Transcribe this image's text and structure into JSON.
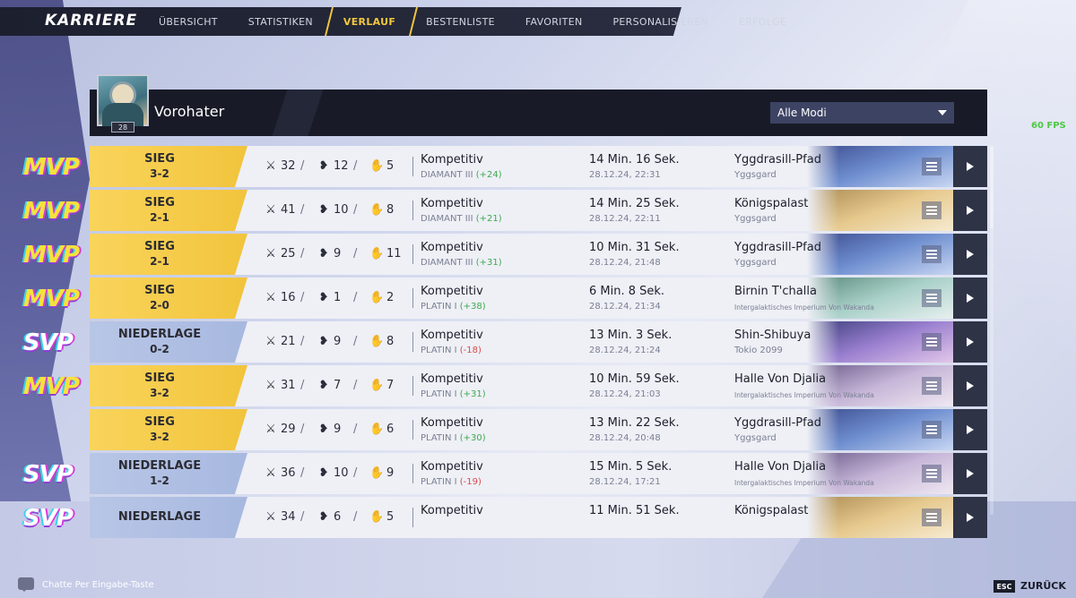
{
  "brand": "KARRIERE",
  "tabs": [
    {
      "label": "ÜBERSICHT",
      "active": false
    },
    {
      "label": "STATISTIKEN",
      "active": false
    },
    {
      "label": "VERLAUF",
      "active": true
    },
    {
      "label": "BESTENLISTE",
      "active": false
    },
    {
      "label": "FAVORITEN",
      "active": false
    },
    {
      "label": "PERSONALISIEREN",
      "active": false
    },
    {
      "label": "ERFOLGE",
      "active": false
    }
  ],
  "player": {
    "name": "Vorohater",
    "level": "28"
  },
  "mode_filter": {
    "selected": "Alle Modi"
  },
  "fps": "60 FPS",
  "matches": [
    {
      "badge": "MVP",
      "result": "SIEG",
      "score": "3-2",
      "win": true,
      "kills": "32",
      "deaths": "12",
      "assists": "5",
      "mode": "Kompetitiv",
      "rank": "DIAMANT III",
      "rank_change": "(+24)",
      "duration": "14 Min. 16 Sek.",
      "date": "28.12.24, 22:31",
      "map": "Yggdrasill-Pfad",
      "region": "Yggsgard",
      "map_theme": "ygg"
    },
    {
      "badge": "MVP",
      "result": "SIEG",
      "score": "2-1",
      "win": true,
      "kills": "41",
      "deaths": "10",
      "assists": "8",
      "mode": "Kompetitiv",
      "rank": "DIAMANT III",
      "rank_change": "(+21)",
      "duration": "14 Min. 25 Sek.",
      "date": "28.12.24, 22:11",
      "map": "Königspalast",
      "region": "Yggsgard",
      "map_theme": "palace"
    },
    {
      "badge": "MVP",
      "result": "SIEG",
      "score": "2-1",
      "win": true,
      "kills": "25",
      "deaths": "9",
      "assists": "11",
      "mode": "Kompetitiv",
      "rank": "DIAMANT III",
      "rank_change": "(+31)",
      "duration": "10 Min. 31 Sek.",
      "date": "28.12.24, 21:48",
      "map": "Yggdrasill-Pfad",
      "region": "Yggsgard",
      "map_theme": "ygg"
    },
    {
      "badge": "MVP",
      "result": "SIEG",
      "score": "2-0",
      "win": true,
      "kills": "16",
      "deaths": "1",
      "assists": "2",
      "mode": "Kompetitiv",
      "rank": "PLATIN I",
      "rank_change": "(+38)",
      "duration": "6 Min. 8 Sek.",
      "date": "28.12.24, 21:34",
      "map": "Birnin T'challa",
      "region": "Intergalaktisches Imperium Von Wakanda",
      "map_theme": "wakanda"
    },
    {
      "badge": "SVP",
      "result": "NIEDERLAGE",
      "score": "0-2",
      "win": false,
      "kills": "21",
      "deaths": "9",
      "assists": "8",
      "mode": "Kompetitiv",
      "rank": "PLATIN I",
      "rank_change": "(-18)",
      "duration": "13 Min. 3 Sek.",
      "date": "28.12.24, 21:24",
      "map": "Shin-Shibuya",
      "region": "Tokio 2099",
      "map_theme": "tokyo"
    },
    {
      "badge": "MVP",
      "result": "SIEG",
      "score": "3-2",
      "win": true,
      "kills": "31",
      "deaths": "7",
      "assists": "7",
      "mode": "Kompetitiv",
      "rank": "PLATIN I",
      "rank_change": "(+31)",
      "duration": "10 Min. 59 Sek.",
      "date": "28.12.24, 21:03",
      "map": "Halle Von Djalia",
      "region": "Intergalaktisches Imperium Von Wakanda",
      "map_theme": "djalia"
    },
    {
      "badge": "",
      "result": "SIEG",
      "score": "3-2",
      "win": true,
      "kills": "29",
      "deaths": "9",
      "assists": "6",
      "mode": "Kompetitiv",
      "rank": "PLATIN I",
      "rank_change": "(+30)",
      "duration": "13 Min. 22 Sek.",
      "date": "28.12.24, 20:48",
      "map": "Yggdrasill-Pfad",
      "region": "Yggsgard",
      "map_theme": "ygg"
    },
    {
      "badge": "SVP",
      "result": "NIEDERLAGE",
      "score": "1-2",
      "win": false,
      "kills": "36",
      "deaths": "10",
      "assists": "9",
      "mode": "Kompetitiv",
      "rank": "PLATIN I",
      "rank_change": "(-19)",
      "duration": "15 Min. 5 Sek.",
      "date": "28.12.24, 17:21",
      "map": "Halle Von Djalia",
      "region": "Intergalaktisches Imperium Von Wakanda",
      "map_theme": "djalia"
    },
    {
      "badge": "SVP",
      "result": "NIEDERLAGE",
      "score": "",
      "win": false,
      "kills": "34",
      "deaths": "6",
      "assists": "5",
      "mode": "Kompetitiv",
      "rank": "",
      "rank_change": "",
      "duration": "11 Min. 51 Sek.",
      "date": "",
      "map": "Königspalast",
      "region": "",
      "map_theme": "palace"
    }
  ],
  "map_themes": {
    "ygg": [
      "#3b4a8c",
      "#6f8fd0",
      "#c8d6f2"
    ],
    "palace": [
      "#a98a52",
      "#e6c98d",
      "#f6ead0"
    ],
    "wakanda": [
      "#5a8a7a",
      "#a9d0c9",
      "#e8f0ef"
    ],
    "tokyo": [
      "#3a3d7a",
      "#9a7fd0",
      "#e2c7e9"
    ],
    "djalia": [
      "#6a5a8a",
      "#c7b6d8",
      "#efe8f2"
    ]
  },
  "footer": {
    "chat_hint": "Chatte Per Eingabe-Taste",
    "esc_key": "ESC",
    "back_label": "ZURÜCK"
  }
}
